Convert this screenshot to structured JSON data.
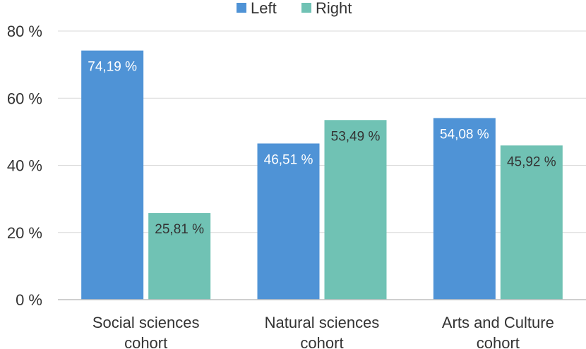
{
  "chart_data": {
    "type": "bar",
    "categories": [
      [
        "Social sciences",
        "cohort"
      ],
      [
        "Natural sciences",
        "cohort"
      ],
      [
        "Arts and Culture",
        "cohort"
      ]
    ],
    "series": [
      {
        "name": "Left",
        "color": "#4f93d6",
        "label_color": "#ffffff",
        "values": [
          74.19,
          46.51,
          54.08
        ],
        "labels": [
          "74,19 %",
          "46,51 %",
          "54,08 %"
        ]
      },
      {
        "name": "Right",
        "color": "#70c2b4",
        "label_color": "#333333",
        "values": [
          25.81,
          53.49,
          45.92
        ],
        "labels": [
          "25,81 %",
          "53,49 %",
          "45,92 %"
        ]
      }
    ],
    "y_ticks": [
      {
        "value": 0,
        "label": "0 %"
      },
      {
        "value": 20,
        "label": "20 %"
      },
      {
        "value": 40,
        "label": "40 %"
      },
      {
        "value": 60,
        "label": "60 %"
      },
      {
        "value": 80,
        "label": "80 %"
      }
    ],
    "ylim": [
      0,
      80
    ],
    "grid": true,
    "legend": "top-center"
  }
}
